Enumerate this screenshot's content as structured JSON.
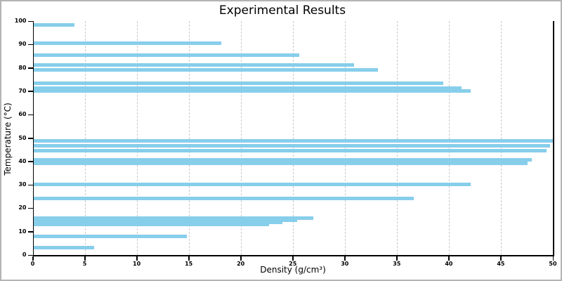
{
  "chart_data": {
    "type": "bar",
    "orientation": "horizontal",
    "title": "Experimental Results",
    "xlabel": "Density (g/cm³)",
    "ylabel": "Temperature (°C)",
    "xlim": [
      0,
      50
    ],
    "ylim": [
      0,
      100
    ],
    "x_ticks": [
      0,
      5,
      10,
      15,
      20,
      25,
      30,
      35,
      40,
      45,
      50
    ],
    "y_ticks": [
      0,
      10,
      20,
      30,
      40,
      50,
      60,
      70,
      80,
      90,
      100
    ],
    "grid": "vertical-dashed",
    "legend": "none",
    "points": [
      {
        "temperature": 98.2,
        "density": 4.0
      },
      {
        "temperature": 90.6,
        "density": 18.1
      },
      {
        "temperature": 85.3,
        "density": 25.6
      },
      {
        "temperature": 81.2,
        "density": 30.9
      },
      {
        "temperature": 79.0,
        "density": 33.2
      },
      {
        "temperature": 73.4,
        "density": 39.5
      },
      {
        "temperature": 71.2,
        "density": 41.2
      },
      {
        "temperature": 70.2,
        "density": 42.1
      },
      {
        "temperature": 48.7,
        "density": 50.0
      },
      {
        "temperature": 46.6,
        "density": 49.7
      },
      {
        "temperature": 44.5,
        "density": 49.4
      },
      {
        "temperature": 40.6,
        "density": 48.0
      },
      {
        "temperature": 39.2,
        "density": 47.6
      },
      {
        "temperature": 30.1,
        "density": 42.1
      },
      {
        "temperature": 24.1,
        "density": 36.6
      },
      {
        "temperature": 15.8,
        "density": 27.0
      },
      {
        "temperature": 14.9,
        "density": 25.4
      },
      {
        "temperature": 13.9,
        "density": 24.0
      },
      {
        "temperature": 13.0,
        "density": 22.7
      },
      {
        "temperature": 8.0,
        "density": 14.8
      },
      {
        "temperature": 3.1,
        "density": 5.9
      }
    ],
    "colors": {
      "bar": "#87CEEB",
      "gridline": "#c9c9c9",
      "spine": "#000000",
      "frame": "#b4b4b4",
      "background": "#ffffff"
    }
  }
}
